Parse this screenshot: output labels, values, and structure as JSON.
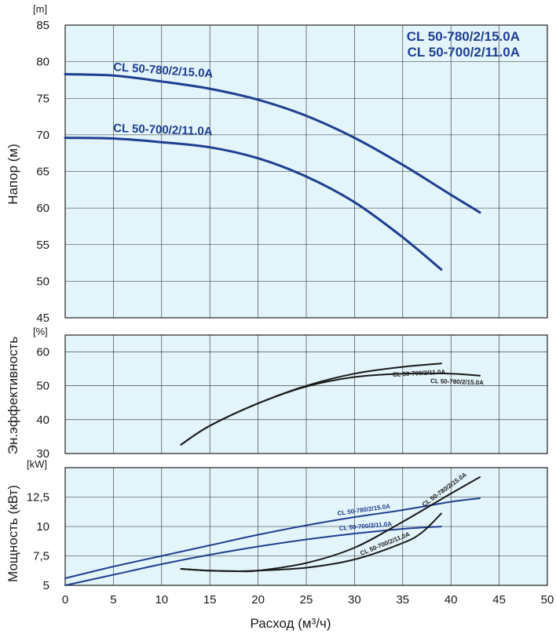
{
  "chart_data": [
    {
      "type": "line",
      "ylabel": "Напор (м)",
      "yunit": "[m]",
      "ylim": [
        45,
        85
      ],
      "yticks": [
        45,
        50,
        55,
        60,
        65,
        70,
        75,
        80,
        85
      ],
      "xlim": [
        0,
        50
      ],
      "grid": true,
      "title_lines": [
        "CL 50-780/2/15.0A",
        "CL 50-700/2/11.0A"
      ],
      "series": [
        {
          "name": "CL 50-780/2/15.0A",
          "color": "#1f3f8f",
          "x": [
            0,
            5,
            10,
            15,
            20,
            25,
            30,
            35,
            40,
            43
          ],
          "y": [
            78.3,
            78.1,
            77.3,
            76.3,
            74.8,
            72.6,
            69.6,
            65.9,
            61.8,
            59.4
          ]
        },
        {
          "name": "CL 50-700/2/11.0A",
          "color": "#1f3f8f",
          "x": [
            0,
            5,
            10,
            15,
            20,
            25,
            30,
            35,
            39
          ],
          "y": [
            69.6,
            69.5,
            69.0,
            68.3,
            66.8,
            64.3,
            60.8,
            56.0,
            51.6
          ]
        }
      ]
    },
    {
      "type": "line",
      "ylabel": "Эн.эффективность",
      "yunit": "[%]",
      "ylim": [
        30,
        65
      ],
      "yticks": [
        30,
        40,
        50,
        60
      ],
      "xlim": [
        0,
        50
      ],
      "grid": true,
      "series": [
        {
          "name": "CL 50-700/2/11.0A",
          "color": "#1a1a1a",
          "x": [
            12,
            15,
            20,
            25,
            30,
            35,
            39
          ],
          "y": [
            32.6,
            38.2,
            44.8,
            50.0,
            53.6,
            55.6,
            56.6
          ]
        },
        {
          "name": "CL 50-780/2/15.0A",
          "color": "#1a1a1a",
          "x": [
            12,
            15,
            20,
            25,
            30,
            35,
            40,
            43
          ],
          "y": [
            32.6,
            38.2,
            44.8,
            49.8,
            52.6,
            53.6,
            53.6,
            53.0
          ]
        }
      ]
    },
    {
      "type": "line",
      "ylabel": "Мощность (кВт)",
      "yunit": "[kW]",
      "ylim": [
        5,
        15
      ],
      "yticks": [
        5,
        7.5,
        10,
        12.5
      ],
      "yticklabels": [
        "5",
        "7,5",
        "10",
        "12,5"
      ],
      "xlim": [
        0,
        50
      ],
      "xticks": [
        0,
        5,
        10,
        15,
        20,
        25,
        30,
        35,
        40,
        45,
        50
      ],
      "xlabel": "Расход (м³/ч)",
      "grid": true,
      "series": [
        {
          "name": "CL 50-780/2/15.0A",
          "color": "#1f3f8f",
          "x": [
            0,
            5,
            10,
            15,
            20,
            25,
            30,
            35,
            40,
            43
          ],
          "y": [
            5.6,
            6.6,
            7.5,
            8.4,
            9.3,
            10.1,
            10.8,
            11.4,
            12.1,
            12.4
          ]
        },
        {
          "name": "CL 50-700/2/11.0A",
          "color": "#1f3f8f",
          "x": [
            0,
            5,
            10,
            15,
            20,
            25,
            30,
            35,
            39
          ],
          "y": [
            5.0,
            5.9,
            6.8,
            7.6,
            8.3,
            8.9,
            9.4,
            9.8,
            10.0
          ]
        },
        {
          "name": "CL 50-780/2/15.0A",
          "color": "#1a1a1a",
          "x": [
            12,
            15,
            18,
            20,
            25,
            30,
            35,
            40,
            43
          ],
          "y": [
            6.4,
            6.25,
            6.2,
            6.25,
            6.9,
            8.2,
            10.4,
            12.8,
            14.2
          ]
        },
        {
          "name": "CL 50-700/2/11.0A",
          "color": "#1a1a1a",
          "x": [
            12,
            15,
            18,
            20,
            25,
            30,
            35,
            37,
            39
          ],
          "y": [
            6.4,
            6.25,
            6.2,
            6.25,
            6.5,
            7.2,
            8.6,
            9.5,
            11.1
          ]
        }
      ]
    }
  ]
}
